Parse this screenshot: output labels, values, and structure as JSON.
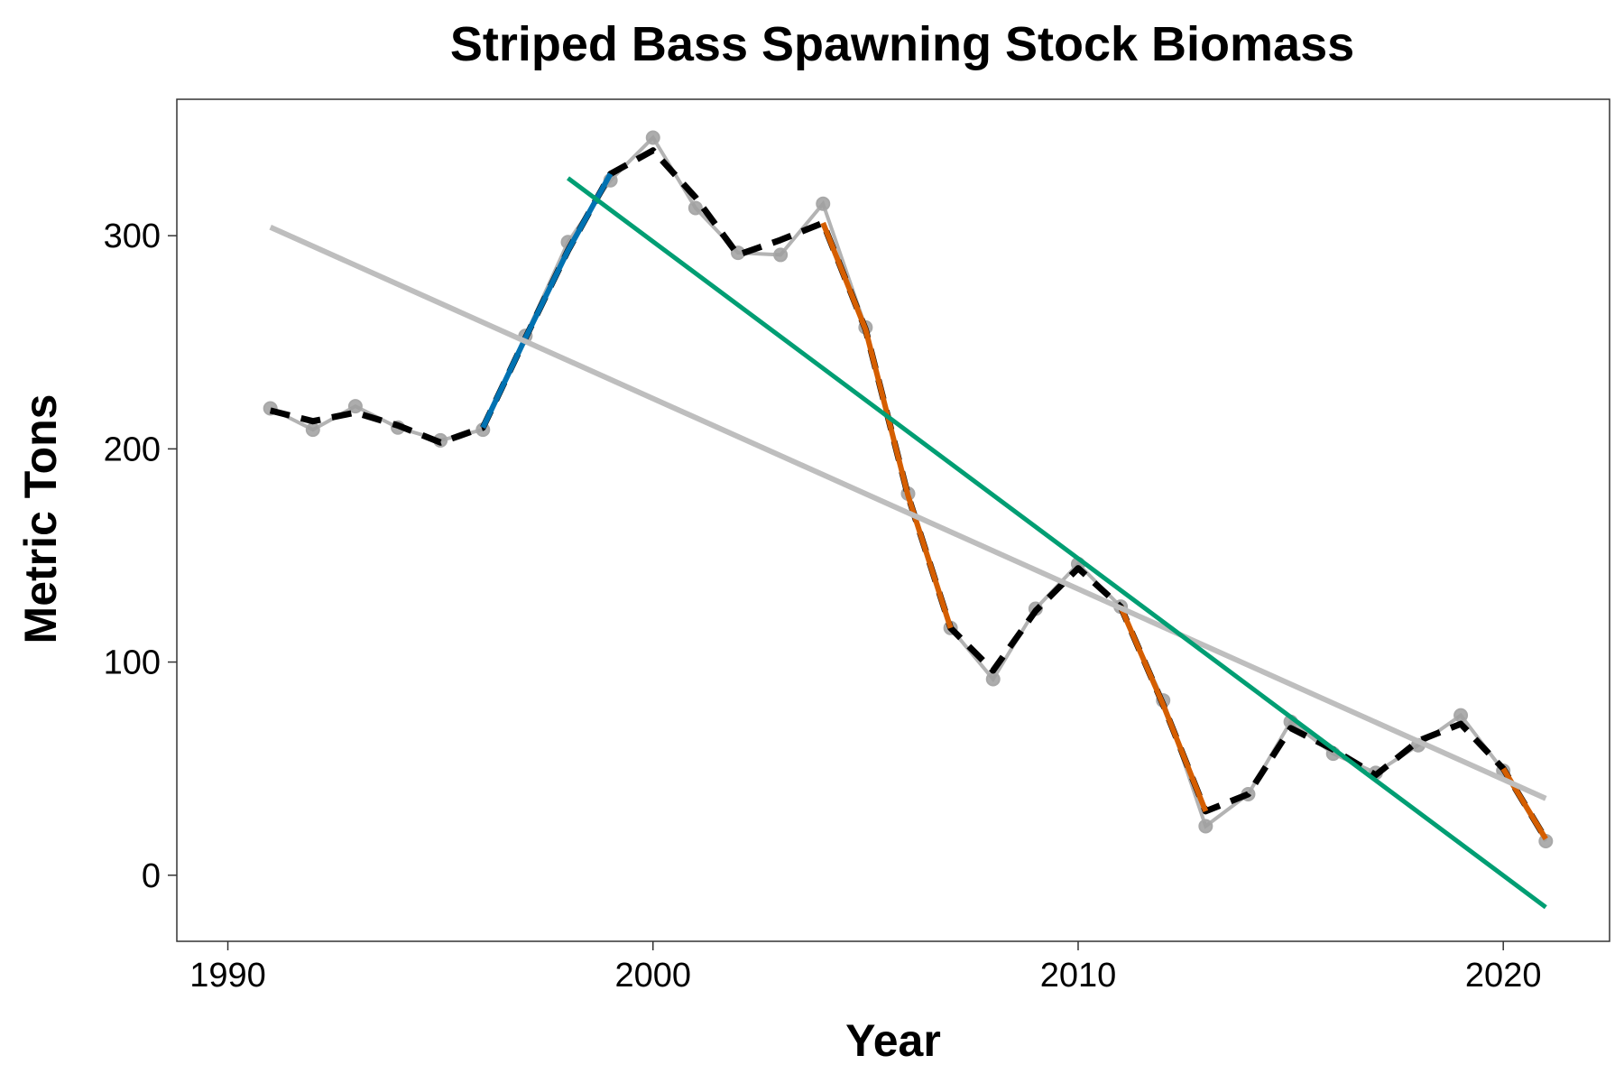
{
  "chart_data": {
    "type": "line",
    "title": "Striped Bass Spawning Stock Biomass",
    "xlabel": "Year",
    "ylabel": "Metric Tons",
    "xlim": [
      1988.8,
      2022.5
    ],
    "ylim": [
      -31,
      364
    ],
    "x_ticks": [
      1990,
      2000,
      2010,
      2020
    ],
    "y_ticks": [
      0,
      100,
      200,
      300
    ],
    "grid": false,
    "colors": {
      "observed": "#b3b3b3",
      "smoothed": "#000000",
      "increase": "#0072b2",
      "decrease": "#d55e00",
      "trend_all": "#bebebe",
      "trend_recent": "#009e73"
    },
    "series": [
      {
        "role": "observed",
        "style": "grey line with points",
        "x": [
          1991,
          1992,
          1993,
          1994,
          1995,
          1996,
          1997,
          1998,
          1999,
          2000,
          2001,
          2002,
          2003,
          2004,
          2005,
          2006,
          2007,
          2008,
          2009,
          2010,
          2011,
          2012,
          2013,
          2014,
          2015,
          2016,
          2017,
          2018,
          2019,
          2020,
          2021
        ],
        "y": [
          219,
          209,
          220,
          210,
          204,
          209,
          253,
          297,
          326,
          346,
          313,
          292,
          291,
          315,
          257,
          179,
          116,
          92,
          125,
          146,
          126,
          82,
          23,
          38,
          72,
          57,
          48,
          61,
          75,
          49,
          16
        ]
      },
      {
        "role": "smoothed",
        "style": "black dashed",
        "x": [
          1991,
          1992,
          1993,
          1994,
          1995,
          1996,
          1997,
          1998,
          1999,
          2000,
          2001,
          2002,
          2003,
          2004,
          2005,
          2006,
          2007,
          2008,
          2009,
          2010,
          2011,
          2012,
          2013,
          2014,
          2015,
          2016,
          2017,
          2018,
          2019,
          2020,
          2021
        ],
        "y": [
          218,
          213,
          217,
          211,
          203,
          210,
          252,
          293,
          329,
          340,
          318,
          291,
          298,
          306,
          256,
          178,
          116,
          96,
          124,
          144,
          126,
          80,
          30,
          38,
          69,
          59,
          47,
          63,
          71,
          50,
          17
        ]
      },
      {
        "role": "increase",
        "style": "blue segment",
        "x": [
          1996,
          1997,
          1998,
          1999
        ],
        "y": [
          210,
          252,
          293,
          329
        ]
      },
      {
        "role": "decrease",
        "style": "orange segment",
        "x": [
          2004,
          2005,
          2006,
          2007
        ],
        "y": [
          306,
          256,
          178,
          116
        ]
      },
      {
        "role": "decrease",
        "style": "orange segment",
        "x": [
          2011,
          2012,
          2013
        ],
        "y": [
          126,
          80,
          30
        ]
      },
      {
        "role": "decrease",
        "style": "orange segment",
        "x": [
          2020,
          2021
        ],
        "y": [
          50,
          17
        ]
      },
      {
        "role": "trend_all",
        "style": "grey regression line",
        "x": [
          1991,
          2021
        ],
        "y": [
          304,
          36
        ]
      },
      {
        "role": "trend_recent",
        "style": "green regression line",
        "x": [
          1998,
          2021
        ],
        "y": [
          327,
          -15
        ]
      }
    ]
  }
}
